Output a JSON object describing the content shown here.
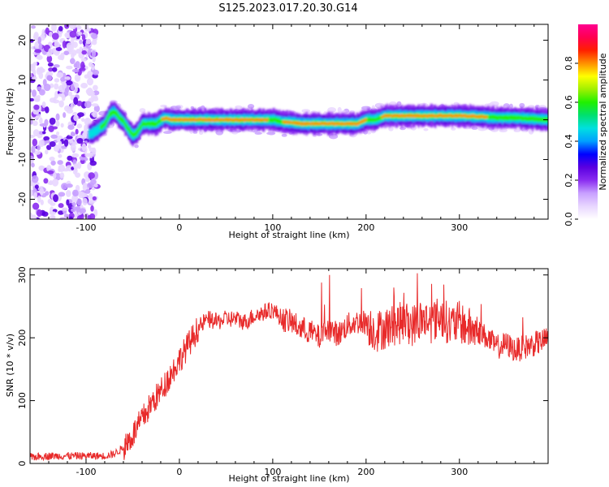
{
  "title": "S125.2023.017.20.30.G14",
  "chart_data": [
    {
      "type": "heatmap",
      "xlabel": "Height of straight line (km)",
      "ylabel": "Frequency (Hz)",
      "xlim": [
        -160,
        395
      ],
      "ylim": [
        -25,
        24
      ],
      "xticks": [
        -100,
        0,
        100,
        200,
        300
      ],
      "yticks": [
        -20,
        -10,
        0,
        10,
        20
      ],
      "colorbar": {
        "label": "Normalized spectral amplitude",
        "ticks": [
          0.0,
          0.2,
          0.4,
          0.6,
          0.8
        ],
        "range": [
          0,
          1
        ],
        "colors": [
          "#ffffff",
          "#e8d6ff",
          "#c8a0ff",
          "#8a2cf0",
          "#5a00e0",
          "#0000ff",
          "#00a0ff",
          "#00e0e0",
          "#00e070",
          "#20f000",
          "#a0f000",
          "#ffff00",
          "#ff9000",
          "#ff2000",
          "#ff0050",
          "#ff0090"
        ]
      },
      "ridge": {
        "x": [
          -95,
          -88,
          -80,
          -75,
          -70,
          -65,
          -60,
          -55,
          -50,
          -45,
          -40,
          -35,
          -30,
          -25,
          -20,
          -15,
          -10,
          -5,
          0,
          20,
          40,
          60,
          80,
          100,
          110,
          120,
          130,
          140,
          150,
          160,
          170,
          180,
          190,
          200,
          210,
          220,
          240,
          260,
          280,
          300,
          320,
          340,
          360,
          380,
          395
        ],
        "y": [
          -3.5,
          -2.5,
          -1,
          1.5,
          2,
          0.5,
          -0.5,
          -2.5,
          -4,
          -3,
          -1,
          -1,
          -1,
          -1,
          0,
          0.5,
          0,
          0,
          0,
          0,
          0,
          0,
          0,
          0,
          -0.5,
          -0.7,
          -1,
          -1,
          -1,
          -1,
          -1,
          -1,
          -1,
          0,
          0,
          1,
          1,
          1,
          1,
          1,
          0.8,
          0.5,
          0.5,
          0.2,
          0
        ]
      }
    },
    {
      "type": "line",
      "xlabel": "Height of straight line (km)",
      "ylabel": "SNR (10 * v/v)",
      "xlim": [
        -160,
        395
      ],
      "ylim": [
        0,
        310
      ],
      "xticks": [
        -100,
        0,
        100,
        200,
        300
      ],
      "yticks": [
        0,
        100,
        200,
        300
      ],
      "color": "#e82a2a",
      "series": [
        {
          "x": [
            -160,
            -140,
            -120,
            -100,
            -80,
            -70,
            -60,
            -50,
            -40,
            -30,
            -20,
            -10,
            0,
            10,
            20,
            30,
            40,
            50,
            60,
            70,
            80,
            90,
            100,
            110,
            120,
            130,
            140,
            150,
            160,
            170,
            180,
            190,
            200,
            210,
            220,
            230,
            240,
            250,
            260,
            270,
            280,
            290,
            300,
            310,
            320,
            330,
            340,
            350,
            360,
            370,
            380,
            390,
            395
          ],
          "y": [
            10,
            12,
            12,
            12,
            12,
            15,
            25,
            45,
            70,
            95,
            115,
            140,
            165,
            190,
            215,
            230,
            225,
            230,
            230,
            225,
            235,
            240,
            245,
            230,
            225,
            215,
            210,
            200,
            215,
            205,
            220,
            225,
            225,
            210,
            215,
            220,
            225,
            220,
            230,
            225,
            235,
            220,
            225,
            215,
            210,
            200,
            185,
            190,
            180,
            185,
            190,
            195,
            200
          ]
        }
      ]
    }
  ]
}
